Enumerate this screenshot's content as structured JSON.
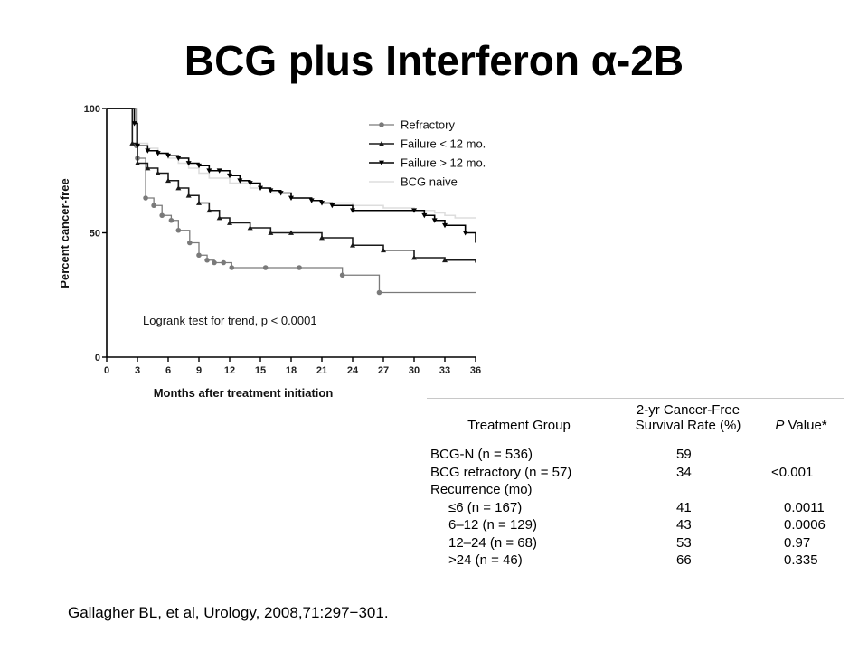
{
  "slide": {
    "title": "BCG plus Interferon α-2B",
    "citation": "Gallagher BL, et al, Urology, 2008,71:297−301."
  },
  "chart_data": {
    "type": "line",
    "title": "",
    "xlabel": "Months after treatment initiation",
    "ylabel": "Percent cancer-free",
    "xlim": [
      0,
      36
    ],
    "ylim": [
      0,
      100
    ],
    "xticks": [
      0,
      3,
      6,
      9,
      12,
      15,
      18,
      21,
      24,
      27,
      30,
      33,
      36
    ],
    "yticks": [
      0,
      50,
      100
    ],
    "grid": false,
    "legend_position": "top-right",
    "annotation": "Logrank test for trend, p < 0.0001",
    "colors": {
      "Refractory": "#7a7a7a",
      "Failure < 12 mo.": "#1a1a1a",
      "Failure > 12 mo.": "#000000",
      "BCG naive": "#dddddd"
    },
    "series": [
      {
        "name": "Refractory",
        "x": [
          0,
          2,
          2.9,
          3,
          3.8,
          4.6,
          5.4,
          6.3,
          7,
          8.1,
          9,
          9.8,
          10.5,
          11.4,
          12.2,
          15.5,
          18.8,
          23,
          26.6,
          36
        ],
        "y": [
          100,
          100,
          85,
          80,
          64,
          61,
          57,
          55,
          51,
          46,
          41,
          39,
          38,
          38,
          36,
          36,
          36,
          33,
          26,
          26
        ]
      },
      {
        "name": "Failure < 12 mo.",
        "x": [
          0,
          1.8,
          2.5,
          3,
          4,
          5,
          6,
          7,
          8,
          9,
          10,
          11,
          12,
          14,
          16,
          18,
          21,
          24,
          27,
          30,
          33,
          36
        ],
        "y": [
          100,
          100,
          86,
          78,
          76,
          74,
          71,
          68,
          65,
          62,
          59,
          56,
          54,
          52,
          50,
          50,
          48,
          45,
          43,
          40,
          39,
          38
        ]
      },
      {
        "name": "Failure > 12 mo.",
        "x": [
          0,
          1.8,
          2.7,
          3,
          4,
          5,
          6,
          7,
          8,
          9,
          10,
          11,
          12,
          13,
          14,
          15,
          16,
          17,
          18,
          20,
          21,
          22,
          24,
          30,
          31,
          32,
          33,
          35,
          36
        ],
        "y": [
          100,
          100,
          94,
          85,
          83,
          82,
          81,
          80,
          78,
          77,
          75,
          75,
          73,
          71,
          70,
          68,
          67,
          66,
          64,
          63,
          62,
          61,
          59,
          59,
          57,
          55,
          53,
          50,
          46
        ]
      },
      {
        "name": "BCG naive",
        "x": [
          0,
          2,
          3,
          4,
          5,
          6,
          7,
          8,
          9,
          10,
          12,
          14,
          16,
          18,
          20,
          21,
          24,
          27,
          30,
          32,
          33,
          34,
          36
        ],
        "y": [
          100,
          100,
          86,
          84,
          82,
          80,
          78,
          76,
          74,
          72,
          70,
          68,
          66,
          64,
          63,
          62,
          61,
          60,
          59,
          58,
          57,
          56,
          56
        ]
      }
    ]
  },
  "table": {
    "headers": {
      "group": "Treatment Group",
      "rate_line1": "2-yr Cancer-Free",
      "rate_line2": "Survival Rate (%)",
      "p_label": "P",
      "p_rest": " Value*"
    },
    "rows": [
      {
        "group": "BCG-N (n = 536)",
        "rate": "59",
        "p": ""
      },
      {
        "group": "BCG refractory (n = 57)",
        "rate": "34",
        "p": "<0.001"
      },
      {
        "group": "Recurrence (mo)",
        "rate": "",
        "p": ""
      },
      {
        "group": "≤6 (n = 167)",
        "rate": "41",
        "p": "0.0011",
        "indent": true
      },
      {
        "group": "6–12 (n = 129)",
        "rate": "43",
        "p": "0.0006",
        "indent": true
      },
      {
        "group": "12–24 (n = 68)",
        "rate": "53",
        "p": "0.97",
        "indent": true
      },
      {
        "group": ">24 (n = 46)",
        "rate": "66",
        "p": "0.335",
        "indent": true
      }
    ]
  }
}
